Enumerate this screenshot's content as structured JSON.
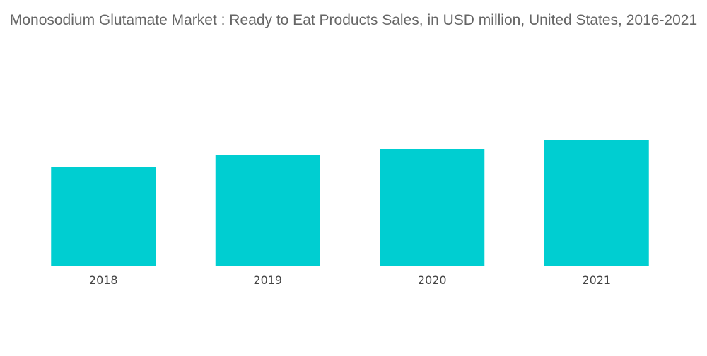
{
  "chart_data": {
    "type": "bar",
    "title": "Monosodium Glutamate Market : Ready to Eat Products Sales, in USD million, United States, 2016-2021",
    "categories": [
      "2018",
      "2019",
      "2020",
      "2021"
    ],
    "values": [
      140,
      157,
      165,
      178
    ],
    "xlabel": "",
    "ylabel": "",
    "ylim": [
      0,
      200
    ],
    "grid": false,
    "legend": "none",
    "colors": {
      "bar": "#00CED1"
    }
  }
}
